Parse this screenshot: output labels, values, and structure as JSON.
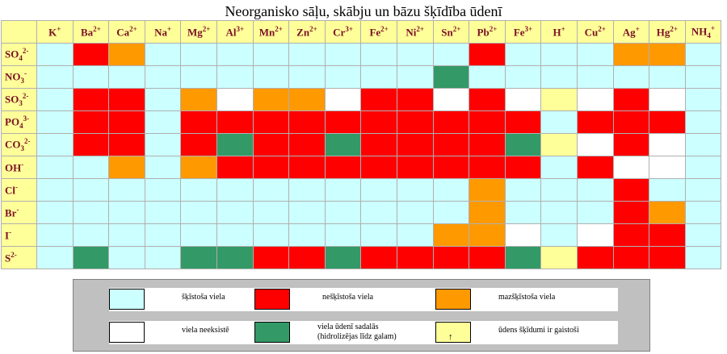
{
  "title": "Neorganisko sāļu, skābju un bāzu šķīdība ūdenī",
  "cations": [
    {
      "base": "K",
      "sup": "+"
    },
    {
      "base": "Ba",
      "sup": "2+"
    },
    {
      "base": "Ca",
      "sup": "2+"
    },
    {
      "base": "Na",
      "sup": "+"
    },
    {
      "base": "Mg",
      "sup": "2+"
    },
    {
      "base": "Al",
      "sup": "3+"
    },
    {
      "base": "Mn",
      "sup": "2+"
    },
    {
      "base": "Zn",
      "sup": "2+"
    },
    {
      "base": "Cr",
      "sup": "3+"
    },
    {
      "base": "Fe",
      "sup": "2+"
    },
    {
      "base": "Ni",
      "sup": "2+"
    },
    {
      "base": "Sn",
      "sup": "2+"
    },
    {
      "base": "Pb",
      "sup": "2+"
    },
    {
      "base": "Fe",
      "sup": "3+"
    },
    {
      "base": "H",
      "sup": "+"
    },
    {
      "base": "Cu",
      "sup": "2+"
    },
    {
      "base": "Ag",
      "sup": "+"
    },
    {
      "base": "Hg",
      "sup": "2+"
    },
    {
      "base": "NH",
      "sub": "4",
      "sup": "+"
    }
  ],
  "anions": [
    {
      "base": "SO",
      "sub": "4",
      "sup": "2-"
    },
    {
      "base": "NO",
      "sub": "3",
      "sup": "-"
    },
    {
      "base": "SO",
      "sub": "3",
      "sup": "2-"
    },
    {
      "base": "PO",
      "sub": "4",
      "sup": "3-"
    },
    {
      "base": "CO",
      "sub": "3",
      "sup": "2-"
    },
    {
      "base": "OH",
      "sup": "-"
    },
    {
      "base": "Cl",
      "sup": "-"
    },
    {
      "base": "Br",
      "sup": "-"
    },
    {
      "base": "I",
      "sup": "-"
    },
    {
      "base": "S",
      "sup": "2-"
    }
  ],
  "colors": {
    "s": "#ccffff",
    "i": "#ff0000",
    "m": "#ff9900",
    "x": "#ffffff",
    "h": "#339966",
    "g": "#ffff99"
  },
  "solubility": [
    [
      "s",
      "i",
      "m",
      "s",
      "s",
      "s",
      "s",
      "s",
      "s",
      "s",
      "s",
      "s",
      "i",
      "s",
      "s",
      "s",
      "m",
      "m",
      "s"
    ],
    [
      "s",
      "s",
      "s",
      "s",
      "s",
      "s",
      "s",
      "s",
      "s",
      "s",
      "s",
      "h",
      "s",
      "s",
      "s",
      "s",
      "s",
      "s",
      "s"
    ],
    [
      "s",
      "i",
      "i",
      "s",
      "m",
      "x",
      "m",
      "m",
      "x",
      "i",
      "i",
      "x",
      "i",
      "x",
      "g",
      "x",
      "i",
      "x",
      "s"
    ],
    [
      "s",
      "i",
      "i",
      "s",
      "i",
      "i",
      "i",
      "i",
      "i",
      "i",
      "i",
      "i",
      "i",
      "i",
      "s",
      "i",
      "i",
      "i",
      "s"
    ],
    [
      "s",
      "i",
      "i",
      "s",
      "i",
      "h",
      "i",
      "i",
      "h",
      "i",
      "i",
      "i",
      "i",
      "h",
      "g",
      "x",
      "i",
      "x",
      "s"
    ],
    [
      "s",
      "s",
      "m",
      "s",
      "m",
      "i",
      "i",
      "i",
      "i",
      "i",
      "i",
      "i",
      "i",
      "i",
      "s",
      "i",
      "x",
      "x",
      "s"
    ],
    [
      "s",
      "s",
      "s",
      "s",
      "s",
      "s",
      "s",
      "s",
      "s",
      "s",
      "s",
      "s",
      "m",
      "s",
      "s",
      "s",
      "i",
      "s",
      "s"
    ],
    [
      "s",
      "s",
      "s",
      "s",
      "s",
      "s",
      "s",
      "s",
      "s",
      "s",
      "s",
      "s",
      "m",
      "s",
      "s",
      "s",
      "i",
      "m",
      "s"
    ],
    [
      "s",
      "s",
      "s",
      "s",
      "s",
      "s",
      "s",
      "s",
      "s",
      "s",
      "s",
      "m",
      "m",
      "x",
      "s",
      "x",
      "i",
      "i",
      "s"
    ],
    [
      "s",
      "h",
      "s",
      "s",
      "h",
      "h",
      "i",
      "i",
      "h",
      "i",
      "i",
      "i",
      "i",
      "h",
      "g",
      "i",
      "i",
      "i",
      "s"
    ]
  ],
  "legend": {
    "soluble": "šķīstoša viela",
    "insoluble": "nešķīstoša viela",
    "slightly": "mazšķīstoša viela",
    "nonexistent": "viela neeksistē",
    "hydrolyzes_line1": "viela ūdenī sadalās",
    "hydrolyzes_line2": "(hidrolizējas līdz galam)",
    "volatile": "ūdens šķīdumi ir gaistoši",
    "arrow": "↑"
  }
}
